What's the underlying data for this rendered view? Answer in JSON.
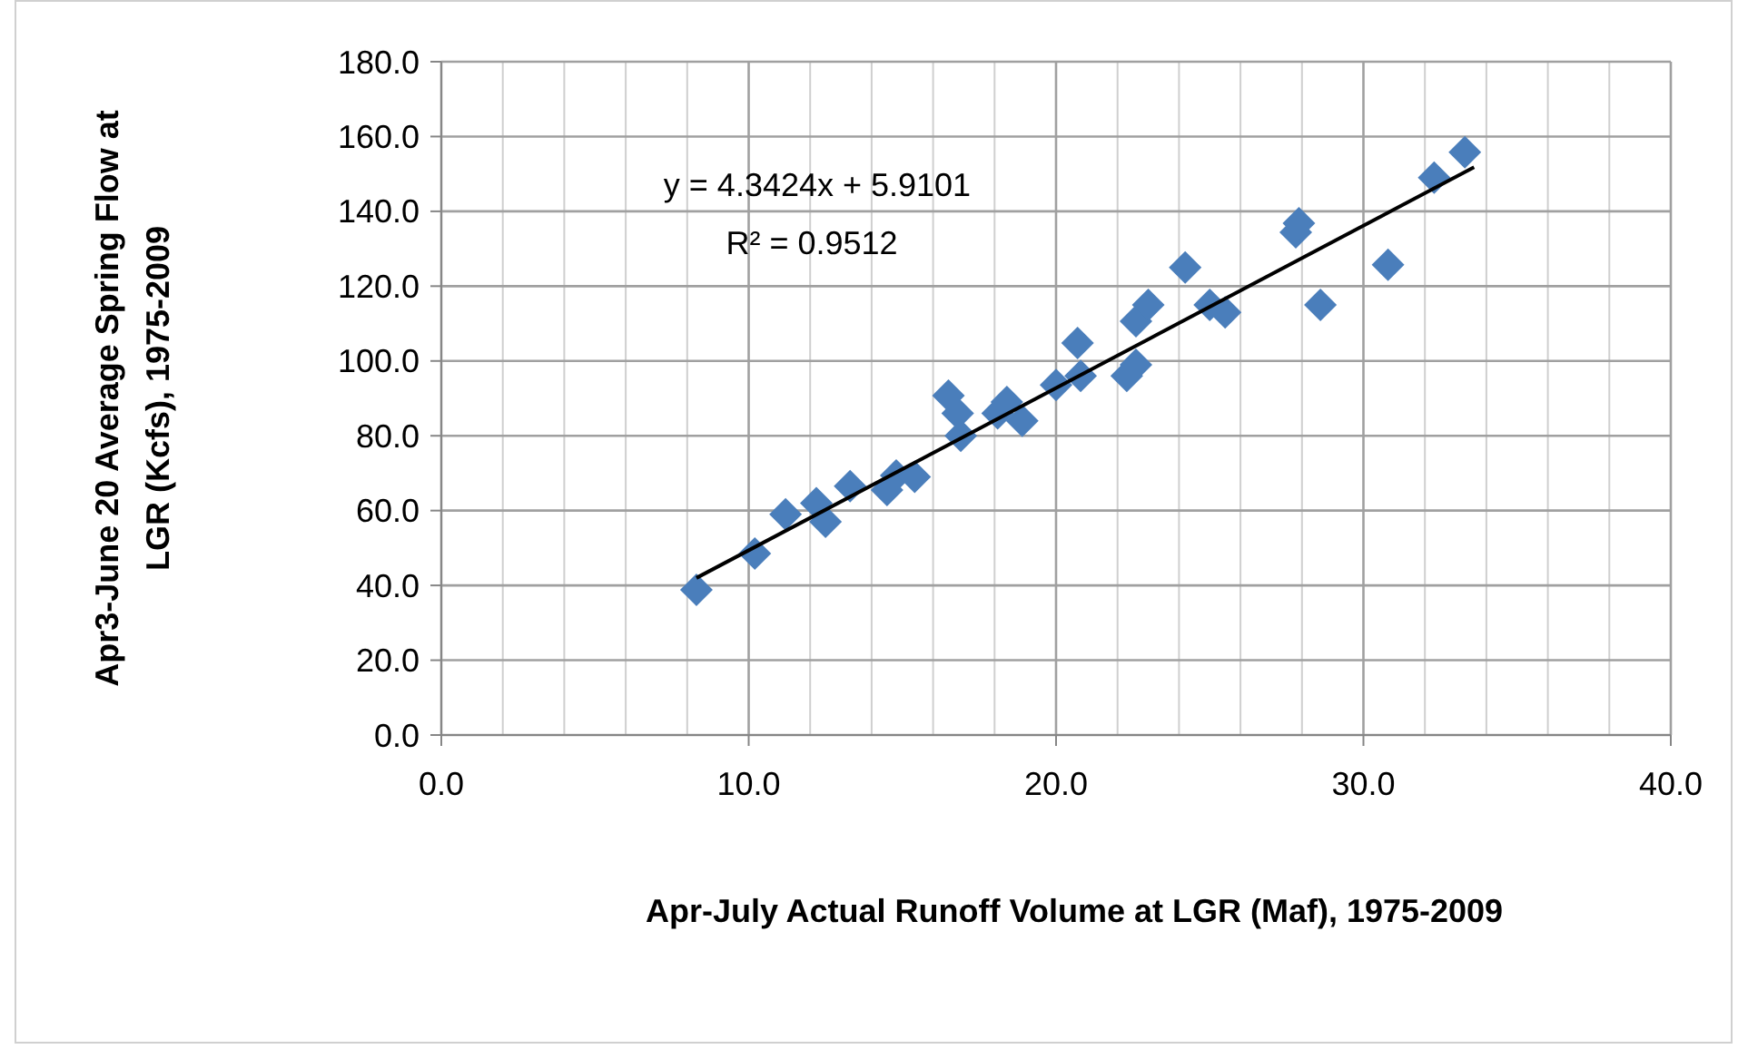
{
  "chart_data": {
    "type": "scatter",
    "xlabel": "Apr-July Actual Runoff Volume at LGR (Maf), 1975-2009",
    "ylabel": "Apr3-June 20 Average Spring Flow at\nLGR (Kcfs), 1975-2009",
    "xlim": [
      0,
      40
    ],
    "ylim": [
      0,
      180
    ],
    "xticks": [
      {
        "value": 0,
        "label": "0.0"
      },
      {
        "value": 2,
        "label": null
      },
      {
        "value": 4,
        "label": null
      },
      {
        "value": 6,
        "label": null
      },
      {
        "value": 8,
        "label": null
      },
      {
        "value": 10,
        "label": "10.0"
      },
      {
        "value": 12,
        "label": null
      },
      {
        "value": 14,
        "label": null
      },
      {
        "value": 16,
        "label": null
      },
      {
        "value": 18,
        "label": null
      },
      {
        "value": 20,
        "label": "20.0"
      },
      {
        "value": 22,
        "label": null
      },
      {
        "value": 24,
        "label": null
      },
      {
        "value": 26,
        "label": null
      },
      {
        "value": 28,
        "label": null
      },
      {
        "value": 30,
        "label": "30.0"
      },
      {
        "value": 32,
        "label": null
      },
      {
        "value": 34,
        "label": null
      },
      {
        "value": 36,
        "label": null
      },
      {
        "value": 38,
        "label": null
      },
      {
        "value": 40,
        "label": "40.0"
      }
    ],
    "yticks": [
      {
        "value": 0,
        "label": "0.0"
      },
      {
        "value": 20,
        "label": "20.0"
      },
      {
        "value": 40,
        "label": "40.0"
      },
      {
        "value": 60,
        "label": "60.0"
      },
      {
        "value": 80,
        "label": "80.0"
      },
      {
        "value": 100,
        "label": "100.0"
      },
      {
        "value": 120,
        "label": "120.0"
      },
      {
        "value": 140,
        "label": "140.0"
      },
      {
        "value": 160,
        "label": "160.0"
      },
      {
        "value": 180,
        "label": "180.0"
      }
    ],
    "grid": true,
    "marker": "diamond",
    "series": [
      {
        "color": "#4a7ebb",
        "x": [
          8.3,
          10.2,
          11.2,
          12.2,
          12.5,
          13.3,
          14.5,
          14.8,
          15.4,
          16.5,
          16.8,
          16.9,
          18.1,
          18.4,
          18.9,
          20.0,
          20.7,
          20.8,
          22.3,
          22.6,
          22.6,
          23.0,
          24.2,
          25.0,
          25.5,
          27.8,
          27.9,
          28.6,
          30.8,
          32.3,
          33.3
        ],
        "values": [
          38.8,
          48.5,
          59,
          62,
          57,
          66.5,
          65.5,
          69.4,
          69,
          90.7,
          86,
          80,
          86,
          89,
          84,
          93.6,
          104.8,
          96,
          96,
          99,
          110.6,
          115,
          125,
          115,
          113,
          134.4,
          136.8,
          115,
          125.7,
          149,
          155.8
        ]
      },
      {
        "type": "line",
        "marker": "none",
        "color": "#000000",
        "x": [
          8.3,
          33.6
        ],
        "values": [
          42.0,
          151.8
        ]
      }
    ],
    "annotations": [
      "y = 4.3424x + 5.9101",
      "R² = 0.9512"
    ]
  }
}
